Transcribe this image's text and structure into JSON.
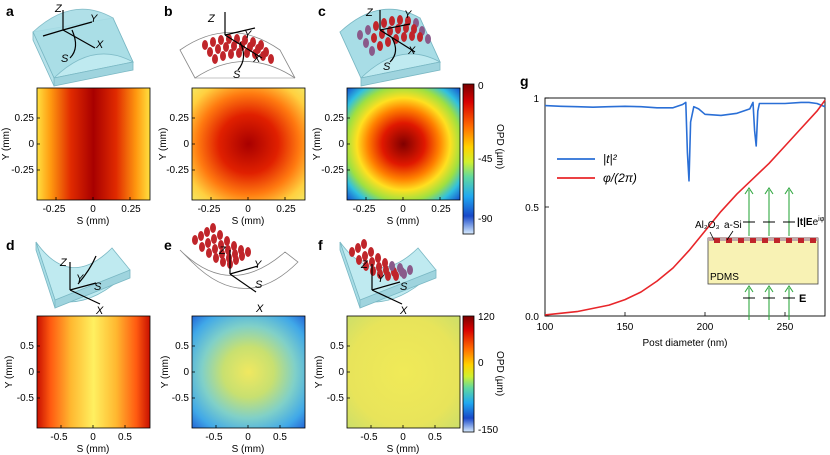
{
  "panel_labels": [
    "a",
    "b",
    "c",
    "d",
    "e",
    "f",
    "g"
  ],
  "axis_letters": {
    "z": "Z",
    "y": "Y",
    "x": "X",
    "s": "S"
  },
  "maps_top": {
    "xlabel": "S (mm)",
    "ylabel": "Y (mm)",
    "xticks": [
      "-0.25",
      "0",
      "0.25"
    ],
    "yticks": [
      "0.25",
      "0",
      "-0.25"
    ]
  },
  "maps_bottom": {
    "xlabel": "S (mm)",
    "ylabel": "Y (mm)",
    "xticks": [
      "-0.5",
      "0",
      "0.5"
    ],
    "yticks": [
      "0.5",
      "0",
      "-0.5"
    ]
  },
  "colorbar_top": {
    "label": "OPD (µm)",
    "ticks": [
      "0",
      "-45",
      "-90"
    ]
  },
  "colorbar_bottom": {
    "label": "OPD (µm)",
    "ticks": [
      "120",
      "0",
      "-150"
    ]
  },
  "colors": {
    "jet": [
      "#7f0000",
      "#d40000",
      "#ff5500",
      "#ffd000",
      "#c8e020",
      "#40c0e0",
      "#1a5fd0",
      "#0f2a9a"
    ],
    "transmission": "#2a6fd6",
    "phase": "#e8262a",
    "substrate": "#f8f2b4",
    "post": "#c0252a"
  },
  "chart_data": {
    "type": "line",
    "title": "",
    "xlabel": "Post diameter (nm)",
    "ylabel": "",
    "xlim": [
      100,
      275
    ],
    "ylim": [
      0,
      1
    ],
    "xticks": [
      "100",
      "150",
      "200",
      "250"
    ],
    "yticks": [
      "0.0",
      "0.5",
      "1"
    ],
    "legend_position": "center-left",
    "series": [
      {
        "name": "|t|²",
        "x": [
          100,
          110,
          120,
          130,
          140,
          150,
          160,
          170,
          180,
          186,
          188,
          189,
          190,
          191,
          193,
          196,
          200,
          210,
          220,
          228,
          230,
          231,
          232,
          233,
          234,
          236,
          240,
          250,
          260,
          265,
          270,
          275
        ],
        "y": [
          0.965,
          0.962,
          0.96,
          0.958,
          0.96,
          0.962,
          0.96,
          0.955,
          0.955,
          0.97,
          0.98,
          0.75,
          0.62,
          0.89,
          0.96,
          0.95,
          0.925,
          0.92,
          0.93,
          0.95,
          0.98,
          0.85,
          0.78,
          0.94,
          0.975,
          0.975,
          0.975,
          0.975,
          0.98,
          0.98,
          0.975,
          0.96
        ]
      },
      {
        "name": "φ/(2π)",
        "x": [
          100,
          120,
          140,
          150,
          160,
          170,
          180,
          190,
          200,
          210,
          220,
          230,
          240,
          250,
          260,
          270,
          275
        ],
        "y": [
          0.005,
          0.02,
          0.05,
          0.075,
          0.11,
          0.16,
          0.22,
          0.3,
          0.39,
          0.48,
          0.56,
          0.63,
          0.7,
          0.78,
          0.86,
          0.94,
          0.99
        ]
      }
    ]
  },
  "inset": {
    "al2o3": "Al₂O₃",
    "asi": "a-Si",
    "pdms": "PDMS",
    "out_field": "|t|E",
    "out_exp": "iφ",
    "e_prefix": "e",
    "in_field": "E"
  }
}
